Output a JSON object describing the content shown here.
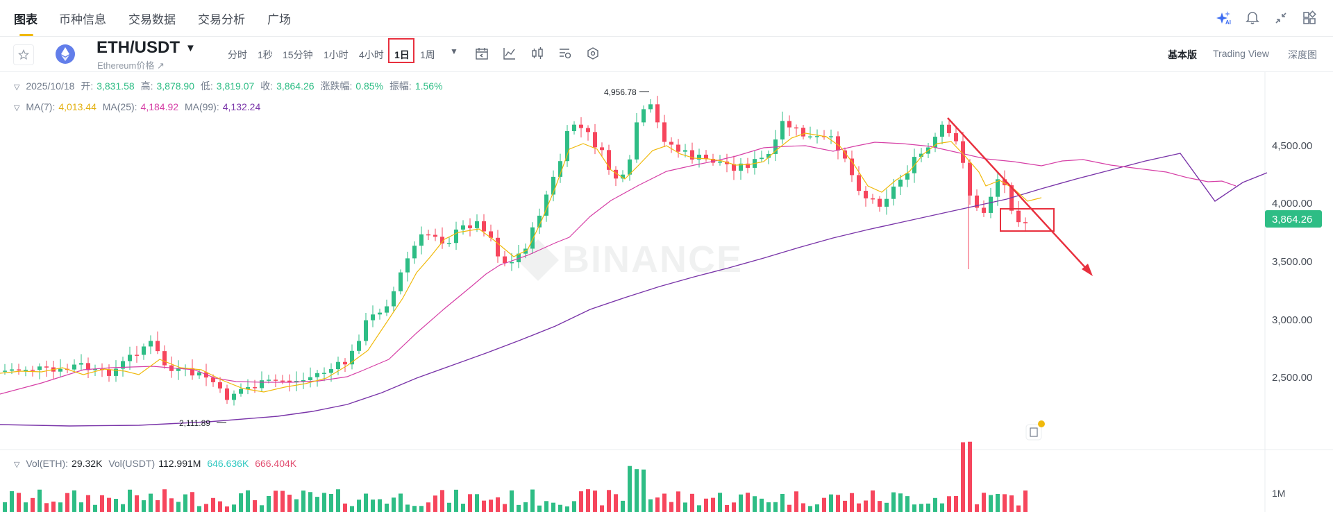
{
  "nav": {
    "tabs": [
      {
        "label": "图表",
        "active": true
      },
      {
        "label": "币种信息"
      },
      {
        "label": "交易数据"
      },
      {
        "label": "交易分析"
      },
      {
        "label": "广场"
      }
    ],
    "icons": [
      "ai-sparkle-icon",
      "bell-icon",
      "collapse-icon",
      "layout-grid-icon"
    ]
  },
  "symbol": {
    "pair": "ETH/USDT",
    "subtitle": "Ethereum价格 ↗",
    "intervals": [
      "分时",
      "1秒",
      "15分钟",
      "1小时",
      "4小时",
      "1日",
      "1周"
    ],
    "selected_interval": "1日",
    "views": [
      "基本版",
      "Trading View",
      "深度图"
    ],
    "selected_view": "基本版"
  },
  "ohlc": {
    "date": "2025/10/18",
    "open_label": "开:",
    "open": "3,831.58",
    "high_label": "高:",
    "high": "3,878.90",
    "low_label": "低:",
    "low": "3,819.07",
    "close_label": "收:",
    "close": "3,864.26",
    "change_label": "涨跌幅:",
    "change": "0.85%",
    "amp_label": "振幅:",
    "amp": "1.56%"
  },
  "ma": {
    "ma7_label": "MA(7):",
    "ma7": "4,013.44",
    "ma25_label": "MA(25):",
    "ma25": "4,184.92",
    "ma99_label": "MA(99):",
    "ma99": "4,132.24"
  },
  "volume": {
    "eth_label": "Vol(ETH):",
    "eth": "29.32K",
    "usdt_label": "Vol(USDT)",
    "usdt": "112.991M",
    "ma1": "646.636K",
    "ma2": "666.404K",
    "axis_label": "1M"
  },
  "price_axis": [
    "4,500.00",
    "4,000.00",
    "3,500.00",
    "3,000.00",
    "2,500.00"
  ],
  "last_price": "3,864.26",
  "extremes": {
    "high": "4,956.78",
    "low": "2,111.89"
  },
  "watermark": "BINANCE",
  "colors": {
    "up": "#2ebd85",
    "down": "#f6465d",
    "ma7": "#f0b90b",
    "ma25": "#d63fa6",
    "ma99": "#7a35a9",
    "annotation": "#e8303e"
  }
}
